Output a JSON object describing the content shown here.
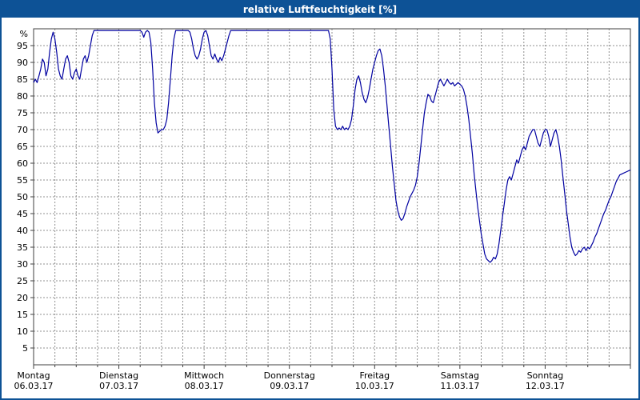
{
  "window": {
    "title": "relative Luftfeuchtigkeit [%]"
  },
  "colors": {
    "title_bar": "#0d5296",
    "title_text": "#ffffff",
    "line": "#0000a0",
    "grid": "#909090",
    "plot_border": "#404040",
    "axis_text": "#000000",
    "background": "#ffffff"
  },
  "chart_data": {
    "type": "line",
    "title": "relative Luftfeuchtigkeit [%]",
    "ylabel": "%",
    "ylim": [
      0,
      100
    ],
    "xlim": [
      0,
      168
    ],
    "x_unit": "hours",
    "x_grid_step_hours": 6,
    "y_tick_step": 5,
    "y_tick_labels": [
      95,
      90,
      85,
      80,
      75,
      70,
      65,
      60,
      55,
      50,
      45,
      40,
      35,
      30,
      25,
      20,
      15,
      10,
      5
    ],
    "grid": "dashed",
    "legend_position": "none",
    "days": [
      {
        "name": "Montag",
        "date": "06.03.17"
      },
      {
        "name": "Dienstag",
        "date": "07.03.17"
      },
      {
        "name": "Mittwoch",
        "date": "08.03.17"
      },
      {
        "name": "Donnerstag",
        "date": "09.03.17"
      },
      {
        "name": "Freitag",
        "date": "10.03.17"
      },
      {
        "name": "Samstag",
        "date": "11.03.17"
      },
      {
        "name": "Sonntag",
        "date": "12.03.17"
      }
    ],
    "series": [
      {
        "name": "relative Luftfeuchtigkeit [%]",
        "points": [
          [
            0,
            84
          ],
          [
            0.5,
            85
          ],
          [
            1,
            84
          ],
          [
            1.5,
            86
          ],
          [
            2,
            88
          ],
          [
            2.5,
            91
          ],
          [
            3,
            90
          ],
          [
            3.5,
            86
          ],
          [
            4,
            88
          ],
          [
            4.5,
            93
          ],
          [
            5,
            97
          ],
          [
            5.5,
            99
          ],
          [
            6,
            97
          ],
          [
            6.5,
            93
          ],
          [
            7,
            88
          ],
          [
            7.5,
            86
          ],
          [
            8,
            85
          ],
          [
            8.5,
            88
          ],
          [
            9,
            91
          ],
          [
            9.5,
            92
          ],
          [
            10,
            90
          ],
          [
            10.5,
            86
          ],
          [
            11,
            85
          ],
          [
            11.5,
            87
          ],
          [
            12,
            88
          ],
          [
            12.5,
            86
          ],
          [
            13,
            85
          ],
          [
            13.5,
            88
          ],
          [
            14,
            91
          ],
          [
            14.5,
            92
          ],
          [
            15,
            90
          ],
          [
            15.5,
            92
          ],
          [
            16,
            95
          ],
          [
            16.5,
            98
          ],
          [
            17,
            99.5
          ],
          [
            20,
            99.5
          ],
          [
            24,
            99.5
          ],
          [
            28,
            99.5
          ],
          [
            30,
            99.5
          ],
          [
            30.5,
            99
          ],
          [
            31,
            97.5
          ],
          [
            31.5,
            99
          ],
          [
            32,
            99.5
          ],
          [
            32.5,
            99
          ],
          [
            33,
            96
          ],
          [
            33.5,
            88
          ],
          [
            34,
            78
          ],
          [
            34.5,
            72
          ],
          [
            35,
            69
          ],
          [
            35.5,
            69.5
          ],
          [
            36,
            70
          ],
          [
            36.5,
            70
          ],
          [
            37,
            71
          ],
          [
            37.5,
            73
          ],
          [
            38,
            78
          ],
          [
            38.5,
            85
          ],
          [
            39,
            92
          ],
          [
            39.5,
            97
          ],
          [
            40,
            99.5
          ],
          [
            42,
            99.5
          ],
          [
            43.5,
            99.5
          ],
          [
            44,
            99
          ],
          [
            44.5,
            97
          ],
          [
            45,
            94
          ],
          [
            45.5,
            92
          ],
          [
            46,
            91
          ],
          [
            46.5,
            92
          ],
          [
            47,
            94
          ],
          [
            47.5,
            97
          ],
          [
            48,
            99
          ],
          [
            48.5,
            99.5
          ],
          [
            49,
            98
          ],
          [
            49.5,
            95
          ],
          [
            50,
            92
          ],
          [
            50.5,
            91
          ],
          [
            51,
            92.5
          ],
          [
            51.5,
            91
          ],
          [
            52,
            90
          ],
          [
            52.5,
            91.5
          ],
          [
            53,
            90.5
          ],
          [
            53.5,
            92
          ],
          [
            54,
            94
          ],
          [
            54.5,
            96
          ],
          [
            55,
            98
          ],
          [
            55.5,
            99.5
          ],
          [
            58,
            99.5
          ],
          [
            62,
            99.5
          ],
          [
            66,
            99.5
          ],
          [
            70,
            99.5
          ],
          [
            74,
            99.5
          ],
          [
            78,
            99.5
          ],
          [
            82,
            99.5
          ],
          [
            83,
            99.5
          ],
          [
            83.5,
            97
          ],
          [
            84,
            88
          ],
          [
            84.5,
            76
          ],
          [
            85,
            71
          ],
          [
            85.5,
            70
          ],
          [
            86,
            70.5
          ],
          [
            86.5,
            70
          ],
          [
            87,
            71
          ],
          [
            87.5,
            70
          ],
          [
            88,
            70.5
          ],
          [
            88.5,
            70
          ],
          [
            89,
            71
          ],
          [
            89.5,
            73
          ],
          [
            90,
            77
          ],
          [
            90.5,
            82
          ],
          [
            91,
            85
          ],
          [
            91.5,
            86
          ],
          [
            92,
            84
          ],
          [
            92.5,
            81
          ],
          [
            93,
            79
          ],
          [
            93.5,
            78
          ],
          [
            94,
            79.5
          ],
          [
            94.5,
            82
          ],
          [
            95,
            85
          ],
          [
            95.5,
            88
          ],
          [
            96,
            90
          ],
          [
            96.5,
            92
          ],
          [
            97,
            93.5
          ],
          [
            97.5,
            94
          ],
          [
            98,
            92
          ],
          [
            98.5,
            88
          ],
          [
            99,
            83
          ],
          [
            99.5,
            77
          ],
          [
            100,
            71
          ],
          [
            100.5,
            65
          ],
          [
            101,
            59
          ],
          [
            101.5,
            54
          ],
          [
            102,
            49
          ],
          [
            102.5,
            46
          ],
          [
            103,
            44
          ],
          [
            103.5,
            43
          ],
          [
            104,
            43.5
          ],
          [
            104.5,
            45
          ],
          [
            105,
            47
          ],
          [
            105.5,
            48.5
          ],
          [
            106,
            50
          ],
          [
            106.5,
            51
          ],
          [
            107,
            52
          ],
          [
            107.5,
            53.5
          ],
          [
            108,
            56
          ],
          [
            108.5,
            60
          ],
          [
            109,
            65
          ],
          [
            109.5,
            70
          ],
          [
            110,
            75
          ],
          [
            110.5,
            78
          ],
          [
            111,
            80.5
          ],
          [
            111.5,
            80
          ],
          [
            112,
            78.5
          ],
          [
            112.5,
            78
          ],
          [
            113,
            80
          ],
          [
            113.5,
            82
          ],
          [
            114,
            84
          ],
          [
            114.5,
            85
          ],
          [
            115,
            84
          ],
          [
            115.5,
            83
          ],
          [
            116,
            84
          ],
          [
            116.5,
            85
          ],
          [
            117,
            84
          ],
          [
            117.5,
            83.5
          ],
          [
            118,
            84
          ],
          [
            118.5,
            83
          ],
          [
            119,
            83.5
          ],
          [
            119.5,
            84
          ],
          [
            120,
            83.5
          ],
          [
            120.5,
            83
          ],
          [
            121,
            82
          ],
          [
            121.5,
            80
          ],
          [
            122,
            77
          ],
          [
            122.5,
            73
          ],
          [
            123,
            68
          ],
          [
            123.5,
            63
          ],
          [
            124,
            57
          ],
          [
            124.5,
            52
          ],
          [
            125,
            47
          ],
          [
            125.5,
            43
          ],
          [
            126,
            39
          ],
          [
            126.5,
            36
          ],
          [
            127,
            33
          ],
          [
            127.5,
            31.5
          ],
          [
            128,
            31
          ],
          [
            128.5,
            30.5
          ],
          [
            129,
            31
          ],
          [
            129.5,
            32
          ],
          [
            130,
            31.5
          ],
          [
            130.5,
            33
          ],
          [
            131,
            36
          ],
          [
            131.5,
            40
          ],
          [
            132,
            44
          ],
          [
            132.5,
            48
          ],
          [
            133,
            52
          ],
          [
            133.5,
            55
          ],
          [
            134,
            56
          ],
          [
            134.5,
            55
          ],
          [
            135,
            57
          ],
          [
            135.5,
            59
          ],
          [
            136,
            61
          ],
          [
            136.5,
            60
          ],
          [
            137,
            62
          ],
          [
            137.5,
            64
          ],
          [
            138,
            65
          ],
          [
            138.5,
            64
          ],
          [
            139,
            66
          ],
          [
            139.5,
            68
          ],
          [
            140,
            69
          ],
          [
            140.5,
            70
          ],
          [
            141,
            70
          ],
          [
            141.5,
            68
          ],
          [
            142,
            66
          ],
          [
            142.5,
            65
          ],
          [
            143,
            67
          ],
          [
            143.5,
            69
          ],
          [
            144,
            70
          ],
          [
            144.5,
            70
          ],
          [
            145,
            68
          ],
          [
            145.5,
            65
          ],
          [
            146,
            67
          ],
          [
            146.5,
            69
          ],
          [
            147,
            70
          ],
          [
            147.5,
            68
          ],
          [
            148,
            65
          ],
          [
            148.5,
            61
          ],
          [
            149,
            56
          ],
          [
            149.5,
            51
          ],
          [
            150,
            46
          ],
          [
            150.5,
            42
          ],
          [
            151,
            38
          ],
          [
            151.5,
            35
          ],
          [
            152,
            33.5
          ],
          [
            152.5,
            32.5
          ],
          [
            153,
            33
          ],
          [
            153.5,
            34
          ],
          [
            154,
            33.5
          ],
          [
            154.5,
            34.5
          ],
          [
            155,
            35
          ],
          [
            155.5,
            34
          ],
          [
            156,
            35
          ],
          [
            156.5,
            34.5
          ],
          [
            157,
            35.5
          ],
          [
            157.5,
            36.5
          ],
          [
            158,
            38
          ],
          [
            158.5,
            39
          ],
          [
            159,
            40.5
          ],
          [
            159.5,
            42
          ],
          [
            160,
            43.5
          ],
          [
            160.5,
            45
          ],
          [
            161,
            46
          ],
          [
            161.5,
            47.5
          ],
          [
            162,
            49
          ],
          [
            162.5,
            50
          ],
          [
            163,
            51.5
          ],
          [
            163.5,
            53
          ],
          [
            164,
            54.5
          ],
          [
            164.5,
            55.5
          ],
          [
            165,
            56.5
          ],
          [
            166,
            57
          ],
          [
            167,
            57.5
          ],
          [
            168,
            58
          ]
        ]
      }
    ]
  }
}
